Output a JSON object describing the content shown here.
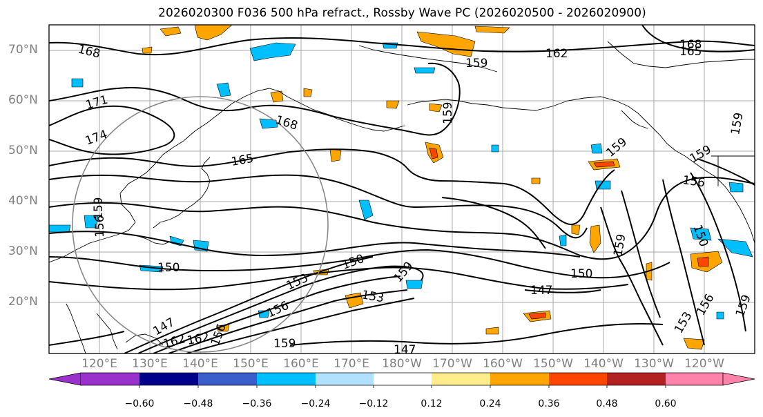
{
  "title": "2026020300 F036 500 hPa refract., Rossby Wave PC (2026020500 - 2026020900)",
  "lat_labels": [
    "70°N",
    "60°N",
    "50°N",
    "40°N",
    "30°N",
    "20°N"
  ],
  "lon_labels": [
    "120°E",
    "130°E",
    "140°E",
    "150°E",
    "160°E",
    "170°E",
    "180°W",
    "170°W",
    "160°W",
    "150°W",
    "140°W",
    "130°W",
    "120°W"
  ],
  "colorbar": {
    "colors": [
      "#9932cc",
      "#00008b",
      "#3a5fcd",
      "#00bfff",
      "#b0e2ff",
      "#ffffff",
      "#ffec8b",
      "#ffa500",
      "#ff4500",
      "#b22222",
      "#ff82ab"
    ],
    "tick_labels": [
      "−0.60",
      "−0.48",
      "−0.36",
      "−0.24",
      "−0.12",
      "0.12",
      "0.24",
      "0.36",
      "0.48",
      "0.60"
    ]
  },
  "contour_labels": [
    "168",
    "171",
    "174",
    "168",
    "165",
    "162",
    "159",
    "159",
    "168",
    "165",
    "159",
    "159",
    "159",
    "156",
    "150",
    "150",
    "150",
    "147",
    "153",
    "153",
    "156",
    "159",
    "147",
    "159",
    "150",
    "156",
    "162",
    "162",
    "147",
    "159",
    "156",
    "153",
    "159",
    "159",
    "156"
  ]
}
